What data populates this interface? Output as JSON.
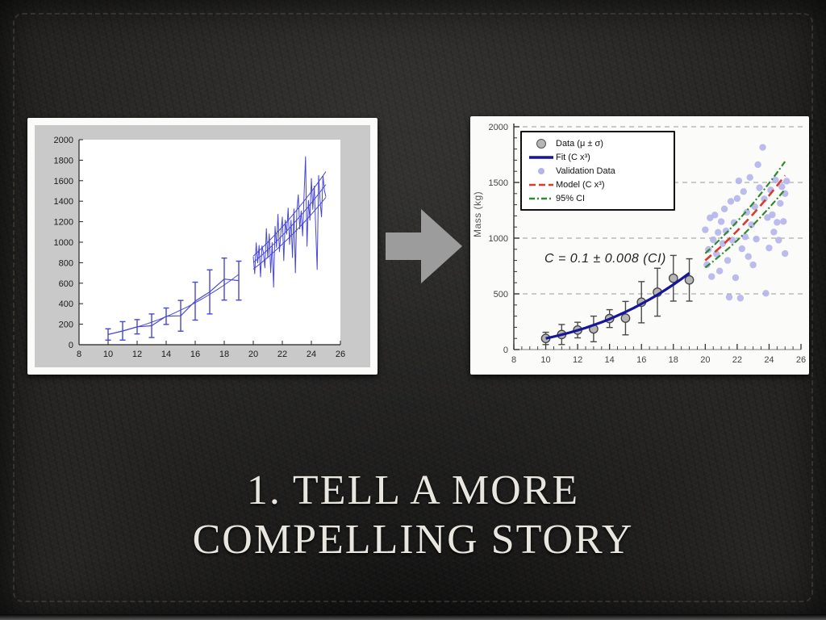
{
  "slide": {
    "title_line1": "1. TELL A MORE",
    "title_line2": "COMPELLING STORY",
    "title_color": "#e9e6df",
    "background_style": "black-leather-with-stitching"
  },
  "arrow": {
    "direction": "right",
    "color": "#9c9c9c"
  },
  "chart_data": [
    {
      "id": "before",
      "type": "line",
      "style": "matlab-default",
      "figure_bg": "#c9c9c9",
      "plot_bg": "#ffffff",
      "line_color": "#4747d6",
      "xlim": [
        8,
        26
      ],
      "ylim": [
        0,
        2000
      ],
      "xticks": [
        8,
        10,
        12,
        14,
        16,
        18,
        20,
        22,
        24,
        26
      ],
      "yticks": [
        0,
        200,
        400,
        600,
        800,
        1000,
        1200,
        1400,
        1600,
        1800,
        2000
      ],
      "grid": "off",
      "series": [
        {
          "name": "measured-means-errorbars",
          "kind": "errorbar-line",
          "color": "#4747d6",
          "x": [
            10,
            11,
            12,
            13,
            14,
            15,
            16,
            17,
            18,
            19
          ],
          "y": [
            100,
            135,
            175,
            185,
            278,
            282,
            425,
            515,
            640,
            625
          ],
          "err": [
            55,
            90,
            70,
            115,
            80,
            150,
            185,
            215,
            205,
            190
          ]
        },
        {
          "name": "fit-curve",
          "kind": "line",
          "color": "#4747d6",
          "width": 1,
          "x": [
            10,
            10.5,
            11,
            11.5,
            12,
            12.5,
            13,
            13.5,
            14,
            14.5,
            15,
            15.5,
            16,
            16.5,
            17,
            17.5,
            18,
            18.5,
            19
          ],
          "y": [
            100,
            116,
            133,
            152,
            173,
            195,
            220,
            246,
            274,
            305,
            338,
            372,
            410,
            449,
            491,
            536,
            583,
            633,
            686
          ]
        },
        {
          "name": "noisy-validation-trace",
          "kind": "line",
          "color": "#4747d6",
          "width": 1,
          "x": [
            20,
            20.1,
            20.2,
            20.3,
            20.4,
            20.5,
            20.6,
            20.7,
            20.8,
            20.9,
            21,
            21.1,
            21.2,
            21.3,
            21.4,
            21.5,
            21.6,
            21.7,
            21.8,
            21.9,
            22,
            22.1,
            22.2,
            22.3,
            22.4,
            22.5,
            22.6,
            22.7,
            22.8,
            22.9,
            23,
            23.1,
            23.2,
            23.3,
            23.4,
            23.5,
            23.6,
            23.7,
            23.8,
            23.9,
            24,
            24.1,
            24.2,
            24.3,
            24.4,
            24.5,
            24.6,
            24.7,
            24.8,
            24.9,
            25
          ],
          "y": [
            860,
            692,
            994,
            797,
            969,
            661,
            964,
            897,
            750,
            1133,
            846,
            1080,
            703,
            996,
            560,
            1154,
            948,
            1272,
            906,
            1090,
            1245,
            820,
            1214,
            1079,
            1334,
            979,
            1214,
            850,
            1325,
            701,
            1307,
            1463,
            1129,
            1305,
            1061,
            1468,
            1835,
            961,
            1408,
            1215,
            1622,
            1320,
            1547,
            1135,
            733,
            1651,
            1399,
            1247,
            1645,
            1504,
            1443
          ]
        },
        {
          "name": "trend-mid",
          "kind": "line",
          "color": "#4747d6",
          "width": 1,
          "x": [
            20,
            20.5,
            21,
            21.5,
            22,
            22.5,
            23,
            23.5,
            24,
            24.5,
            25
          ],
          "y": [
            800,
            862,
            926,
            994,
            1065,
            1139,
            1217,
            1298,
            1382,
            1471,
            1563
          ]
        },
        {
          "name": "trend-upper",
          "kind": "line",
          "color": "#4747d6",
          "width": 1,
          "x": [
            20,
            20.5,
            21,
            21.5,
            22,
            22.5,
            23,
            23.5,
            24,
            24.5,
            25
          ],
          "y": [
            864,
            930,
            1000,
            1073,
            1150,
            1230,
            1314,
            1402,
            1493,
            1588,
            1688
          ]
        },
        {
          "name": "trend-lower",
          "kind": "line",
          "color": "#4747d6",
          "width": 1,
          "x": [
            20,
            20.5,
            21,
            21.5,
            22,
            22.5,
            23,
            23.5,
            24,
            24.5,
            25
          ],
          "y": [
            736,
            793,
            852,
            914,
            980,
            1048,
            1119,
            1194,
            1272,
            1353,
            1438
          ]
        }
      ]
    },
    {
      "id": "after",
      "type": "mixed",
      "plot_bg": "#ffffff",
      "ylabel": "Mass (kg)",
      "annotation": "C = 0.1 ± 0.008 (CI)",
      "xlim": [
        8,
        26
      ],
      "ylim": [
        0,
        2000
      ],
      "xticks": [
        8,
        10,
        12,
        14,
        16,
        18,
        20,
        22,
        24,
        26
      ],
      "yticks": [
        0,
        500,
        1000,
        1500,
        2000
      ],
      "grid": "dashed-horizontal",
      "grid_color": "#9a9a9a",
      "legend": {
        "position": "top-left",
        "entries": [
          {
            "label": "Data (μ ± σ)",
            "swatch": "circle-gray",
            "color": "#b5b5b5"
          },
          {
            "label": "Fit (C x³)",
            "swatch": "line-solid",
            "color": "#16169c"
          },
          {
            "label": "Validation Data",
            "swatch": "dot-lavender",
            "color": "#b4b4ec"
          },
          {
            "label": "Model (C x³)",
            "swatch": "line-dashed",
            "color": "#d93a2e"
          },
          {
            "label": "95% CI",
            "swatch": "line-dashdot",
            "color": "#2f8a2e"
          }
        ]
      },
      "series": [
        {
          "name": "data-mean-sd",
          "kind": "errorbar-points",
          "color": "#4a4a4a",
          "marker_fill": "#b5b5b5",
          "x": [
            10,
            11,
            12,
            13,
            14,
            15,
            16,
            17,
            18,
            19
          ],
          "y": [
            100,
            135,
            175,
            185,
            278,
            282,
            425,
            515,
            640,
            625
          ],
          "err": [
            55,
            90,
            70,
            115,
            80,
            150,
            185,
            215,
            205,
            190
          ]
        },
        {
          "name": "fit",
          "kind": "line",
          "color": "#16169c",
          "width": 3.2,
          "x": [
            10,
            10.5,
            11,
            11.5,
            12,
            12.5,
            13,
            13.5,
            14,
            14.5,
            15,
            15.5,
            16,
            16.5,
            17,
            17.5,
            18,
            18.5,
            19
          ],
          "y": [
            100,
            116,
            133,
            152,
            173,
            195,
            220,
            246,
            274,
            305,
            338,
            372,
            410,
            449,
            491,
            536,
            583,
            633,
            686
          ]
        },
        {
          "name": "validation-scatter",
          "kind": "scatter",
          "color": "#b4b4ec",
          "r": 4.2,
          "points": [
            [
              20.0,
              1075
            ],
            [
              20.1,
              762
            ],
            [
              20.2,
              898
            ],
            [
              20.3,
              1182
            ],
            [
              20.4,
              655
            ],
            [
              20.5,
              985
            ],
            [
              20.6,
              1208
            ],
            [
              20.7,
              858
            ],
            [
              20.8,
              1052
            ],
            [
              20.9,
              705
            ],
            [
              21.0,
              1148
            ],
            [
              21.1,
              952
            ],
            [
              21.2,
              1262
            ],
            [
              21.3,
              1065
            ],
            [
              21.4,
              800
            ],
            [
              21.5,
              470
            ],
            [
              21.6,
              1330
            ],
            [
              21.7,
              982
            ],
            [
              21.8,
              1140
            ],
            [
              21.9,
              645
            ],
            [
              22.0,
              1356
            ],
            [
              22.1,
              1514
            ],
            [
              22.2,
              462
            ],
            [
              22.3,
              905
            ],
            [
              22.4,
              1418
            ],
            [
              22.5,
              1012
            ],
            [
              22.6,
              1232
            ],
            [
              22.7,
              835
            ],
            [
              22.8,
              1545
            ],
            [
              22.9,
              1120
            ],
            [
              23.0,
              760
            ],
            [
              23.1,
              1282
            ],
            [
              23.2,
              992
            ],
            [
              23.3,
              1660
            ],
            [
              23.4,
              1452
            ],
            [
              23.6,
              1815
            ],
            [
              23.7,
              1352
            ],
            [
              23.8,
              505
            ],
            [
              23.9,
              1185
            ],
            [
              24.0,
              912
            ],
            [
              24.1,
              1432
            ],
            [
              24.2,
              1210
            ],
            [
              24.3,
              1055
            ],
            [
              24.4,
              1522
            ],
            [
              24.5,
              1142
            ],
            [
              24.6,
              982
            ],
            [
              24.7,
              1312
            ],
            [
              24.8,
              1462
            ],
            [
              24.9,
              1150
            ],
            [
              25.0,
              1400
            ],
            [
              25.0,
              862
            ],
            [
              25.1,
              1512
            ]
          ]
        },
        {
          "name": "ci-upper",
          "kind": "line",
          "color": "#2f8a2e",
          "width": 2.2,
          "dash": "8 3 2 3",
          "x": [
            20,
            20.5,
            21,
            21.5,
            22,
            22.5,
            23,
            23.5,
            24,
            24.5,
            25
          ],
          "y": [
            864,
            930,
            1000,
            1073,
            1150,
            1230,
            1314,
            1402,
            1493,
            1588,
            1688
          ]
        },
        {
          "name": "ci-lower",
          "kind": "line",
          "color": "#2f8a2e",
          "width": 2.2,
          "dash": "8 3 2 3",
          "x": [
            20,
            20.5,
            21,
            21.5,
            22,
            22.5,
            23,
            23.5,
            24,
            24.5,
            25
          ],
          "y": [
            736,
            793,
            852,
            914,
            980,
            1048,
            1119,
            1194,
            1272,
            1353,
            1438
          ]
        },
        {
          "name": "model",
          "kind": "line",
          "color": "#d93a2e",
          "width": 2.6,
          "dash": "10 6",
          "x": [
            20,
            20.5,
            21,
            21.5,
            22,
            22.5,
            23,
            23.5,
            24,
            24.5,
            25
          ],
          "y": [
            800,
            862,
            926,
            994,
            1065,
            1139,
            1217,
            1298,
            1382,
            1471,
            1563
          ]
        }
      ]
    }
  ]
}
